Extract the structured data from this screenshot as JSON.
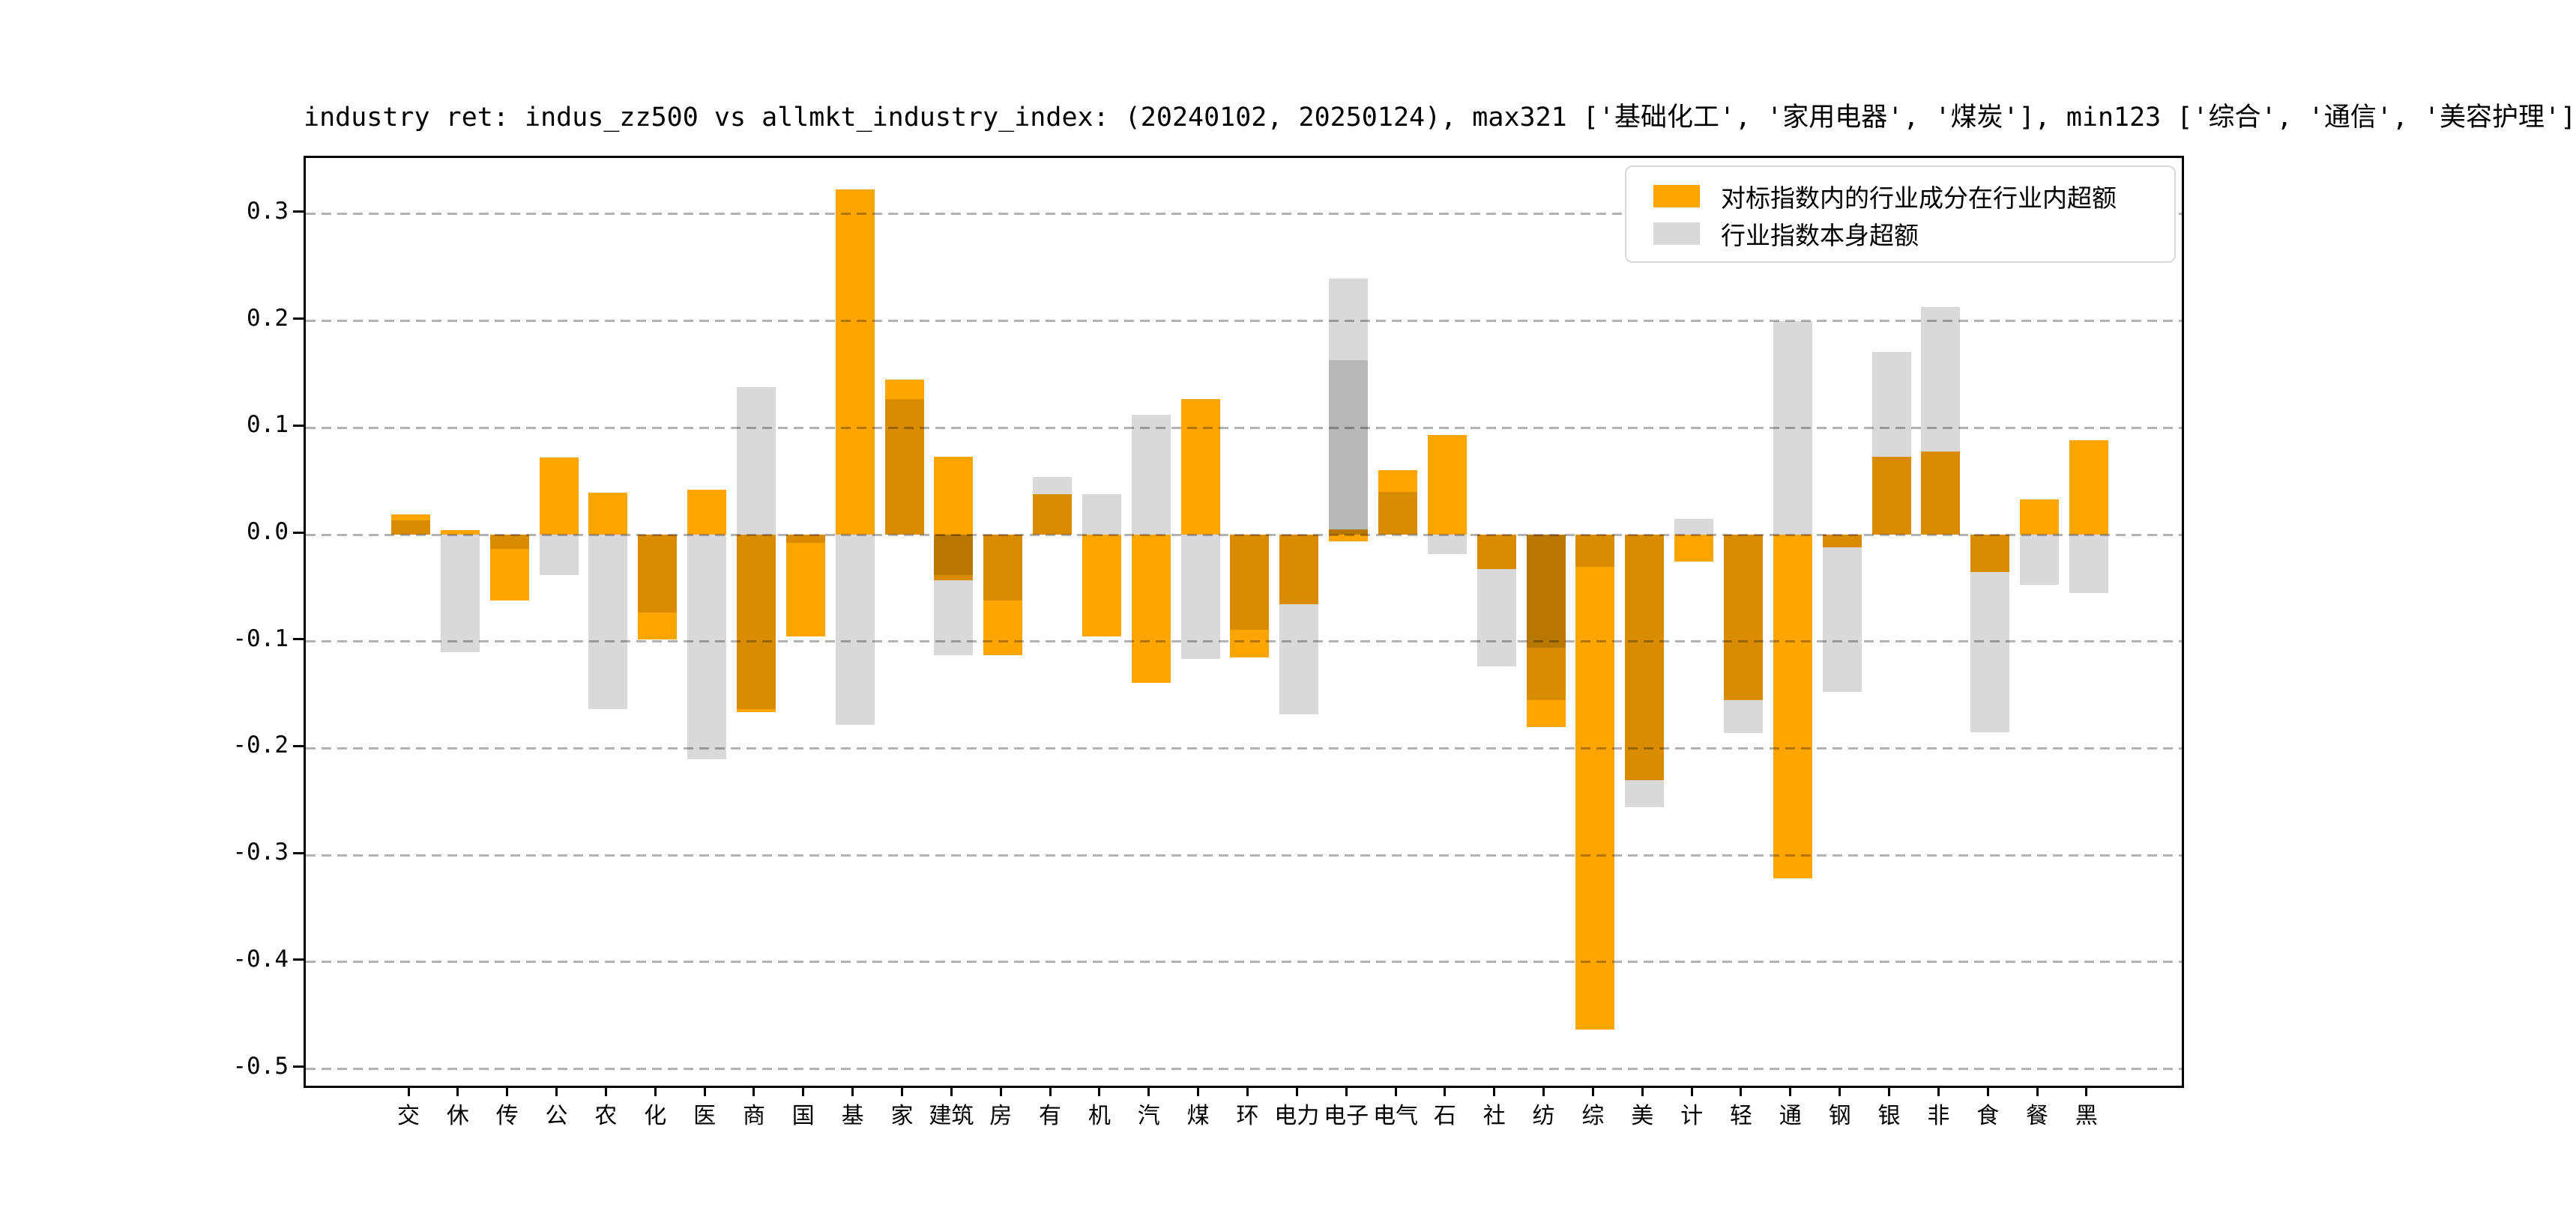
{
  "title": "industry ret: indus_zz500 vs allmkt_industry_index: (20240102, 20250124), max321 ['基础化工', '家用电器', '煤炭'], min123 ['综合', '通信', '美容护理']",
  "legend": [
    {
      "label": "对标指数内的行业成分在行业内超额",
      "color": "#FFA500"
    },
    {
      "label": "行业指数本身超额",
      "color": "#D9D9D9"
    }
  ],
  "colors": {
    "orange": "#FFA500",
    "gray": "#D9D9D9",
    "grid": "#b3b3b3",
    "spine": "#000000",
    "legend_border": "#d9d9d9"
  },
  "chart_data": {
    "type": "bar",
    "layout": "overlaid-bars-with-transparency",
    "grid": "horizontal-dashed",
    "legend_position": "upper-right-inside",
    "ylim": [
      -0.516,
      0.353
    ],
    "yticks": [
      {
        "v": 0.3,
        "label": "0.3"
      },
      {
        "v": 0.2,
        "label": "0.2"
      },
      {
        "v": 0.1,
        "label": "0.1"
      },
      {
        "v": 0.0,
        "label": "0.0"
      },
      {
        "v": -0.1,
        "label": "-0.1"
      },
      {
        "v": -0.2,
        "label": "-0.2"
      },
      {
        "v": -0.3,
        "label": "-0.3"
      },
      {
        "v": -0.4,
        "label": "-0.4"
      },
      {
        "v": -0.5,
        "label": "-0.5"
      }
    ],
    "xlabel": "",
    "ylabel": "",
    "categories": [
      "交",
      "休",
      "传",
      "公",
      "农",
      "化",
      "医",
      "商",
      "国",
      "基",
      "家",
      "建筑",
      "房",
      "有",
      "机",
      "汽",
      "煤",
      "环",
      "电力",
      "电子",
      "电气",
      "石",
      "社",
      "纺",
      "综",
      "美",
      "计",
      "轻",
      "通",
      "钢",
      "银",
      "非",
      "食",
      "餐",
      "黑"
    ],
    "series": [
      {
        "name": "对标指数内的行业成分在行业内超额",
        "key": "orange",
        "color": "#FFA500",
        "values": [
          0.019,
          0.004,
          -0.062,
          0.072,
          0.039,
          -0.098,
          0.042,
          -0.166,
          -0.095,
          0.323,
          0.145,
          0.073,
          -0.113,
          0.038,
          -0.095,
          -0.139,
          0.127,
          -0.115,
          -0.065,
          0.005,
          0.06,
          0.093,
          -0.032,
          -0.18,
          -0.463,
          -0.23,
          -0.025,
          -0.155,
          -0.322,
          -0.012,
          0.073,
          0.078,
          -0.035,
          0.033,
          0.088
        ]
      },
      {
        "name": "行业指数本身超额",
        "key": "gray",
        "color": "#D9D9D9",
        "values": [
          0.013,
          -0.11,
          -0.013,
          -0.038,
          -0.163,
          -0.073,
          -0.21,
          0.138,
          -0.008,
          -0.178,
          0.127,
          -0.113,
          -0.062,
          0.054,
          0.038,
          0.112,
          -0.116,
          -0.089,
          -0.168,
          0.24,
          0.04,
          -0.018,
          -0.123,
          -0.155,
          -0.03,
          -0.255,
          0.015,
          -0.186,
          0.2,
          -0.147,
          0.171,
          0.213,
          -0.185,
          -0.047,
          -0.055
        ]
      },
      {
        "name": "对标指数内的行业成分在行业内超额 (secondary overlay)",
        "key": "orange2",
        "color": "#FFA500",
        "values": [
          null,
          null,
          null,
          null,
          null,
          null,
          null,
          null,
          null,
          null,
          null,
          -0.043,
          null,
          null,
          null,
          null,
          null,
          null,
          null,
          -0.006,
          null,
          null,
          null,
          null,
          null,
          null,
          null,
          null,
          null,
          null,
          null,
          null,
          null,
          null,
          null
        ]
      },
      {
        "name": "行业指数本身超额 (secondary overlay)",
        "key": "gray2",
        "color": "#D9D9D9",
        "values": [
          null,
          null,
          null,
          null,
          null,
          null,
          null,
          -0.163,
          null,
          null,
          null,
          -0.038,
          null,
          null,
          null,
          null,
          null,
          null,
          null,
          0.163,
          null,
          null,
          null,
          -0.106,
          null,
          null,
          null,
          null,
          null,
          null,
          null,
          null,
          null,
          null,
          null
        ]
      }
    ]
  }
}
